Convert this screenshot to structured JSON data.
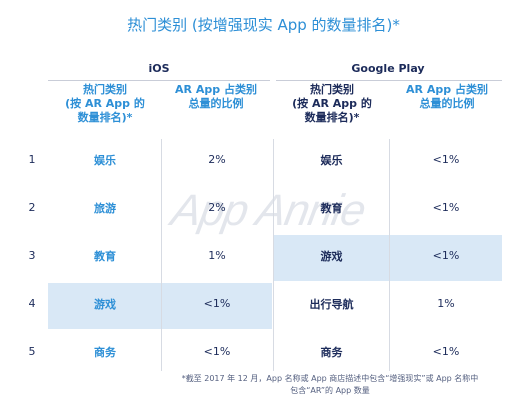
{
  "title": "热门类别 (按增强现实 App 的数量排名)*",
  "platforms": {
    "ios": "iOS",
    "google_play": "Google Play"
  },
  "headers": {
    "ios_category": "热门类别\n(按 AR App 的\n数量排名)*",
    "ios_share": "AR App 占类别\n总量的比例",
    "gp_category": "热门类别\n(按 AR App 的\n数量排名)*",
    "gp_share": "AR App 占类别\n总量的比例"
  },
  "rows": [
    {
      "rank": "1",
      "ios_category": "娱乐",
      "ios_share": "2%",
      "gp_category": "娱乐",
      "gp_share": "<1%"
    },
    {
      "rank": "2",
      "ios_category": "旅游",
      "ios_share": "2%",
      "gp_category": "教育",
      "gp_share": "<1%"
    },
    {
      "rank": "3",
      "ios_category": "教育",
      "ios_share": "1%",
      "gp_category": "游戏",
      "gp_share": "<1%"
    },
    {
      "rank": "4",
      "ios_category": "游戏",
      "ios_share": "<1%",
      "gp_category": "出行导航",
      "gp_share": "1%"
    },
    {
      "rank": "5",
      "ios_category": "商务",
      "ios_share": "<1%",
      "gp_category": "商务",
      "gp_share": "<1%"
    }
  ],
  "watermark": "App Annie",
  "footnote": "*截至 2017 年 12 月，App 名称或 App 商店描述中包含“增强现实”或 App 名称中\n包含“AR”的 App 数量",
  "colors": {
    "accent_blue": "#2d8fd6",
    "navy": "#1c2b5a",
    "highlight": "#d9e8f6"
  }
}
